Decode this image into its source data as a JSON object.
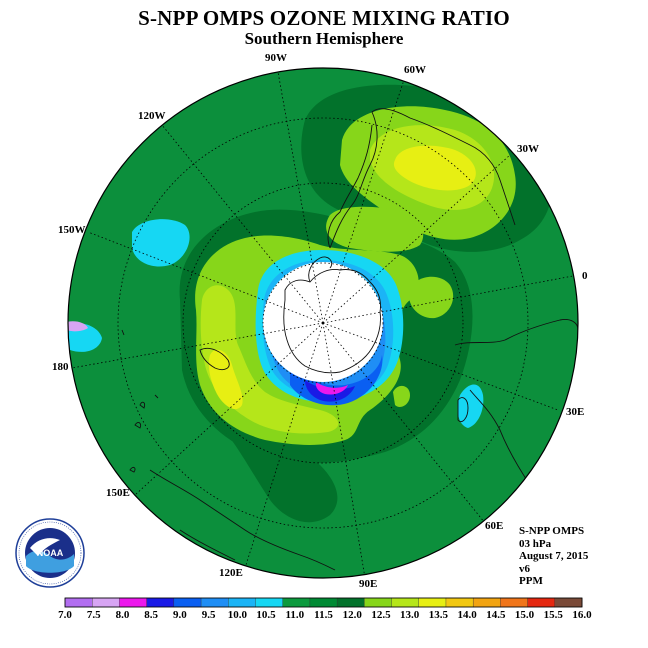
{
  "title": "S-NPP OMPS OZONE MIXING RATIO",
  "subtitle": "Southern Hemisphere",
  "longitude_labels": [
    {
      "text": "90W"
    },
    {
      "text": "60W"
    },
    {
      "text": "120W"
    },
    {
      "text": "30W"
    },
    {
      "text": "150W"
    },
    {
      "text": "0"
    },
    {
      "text": "180"
    },
    {
      "text": "30E"
    },
    {
      "text": "150E"
    },
    {
      "text": "60E"
    },
    {
      "text": "120E"
    },
    {
      "text": "90E"
    }
  ],
  "info": {
    "instrument": "S-NPP OMPS",
    "level": "03 hPa",
    "date": "August 7, 2015",
    "version": "v6",
    "units": "PPM"
  },
  "logo": {
    "text": "NOAA",
    "ring_text": "NATIONAL OCEANIC AND ATMOSPHERIC ADMINISTRATION · U.S. DEPARTMENT OF COMMERCE"
  },
  "colorbar": {
    "labels": [
      "7.0",
      "7.5",
      "8.0",
      "8.5",
      "9.0",
      "9.5",
      "10.0",
      "10.5",
      "11.0",
      "11.5",
      "12.0",
      "12.5",
      "13.0",
      "13.5",
      "14.0",
      "14.5",
      "15.0",
      "15.5",
      "16.0"
    ],
    "colors": [
      "#b26ef0",
      "#d7a5f3",
      "#ec18ec",
      "#1a1ae6",
      "#0a5ff2",
      "#1f8ef5",
      "#1bb4f6",
      "#16d7f3",
      "#0c9a3e",
      "#008a34",
      "#02722b",
      "#87d61a",
      "#b5e61a",
      "#e7ef13",
      "#f2c812",
      "#f2a411",
      "#f0751a",
      "#e52810",
      "#7a4a38"
    ]
  },
  "map": {
    "ocean_base_color": "#0c8f3c",
    "pole_color": "#ffffff"
  }
}
